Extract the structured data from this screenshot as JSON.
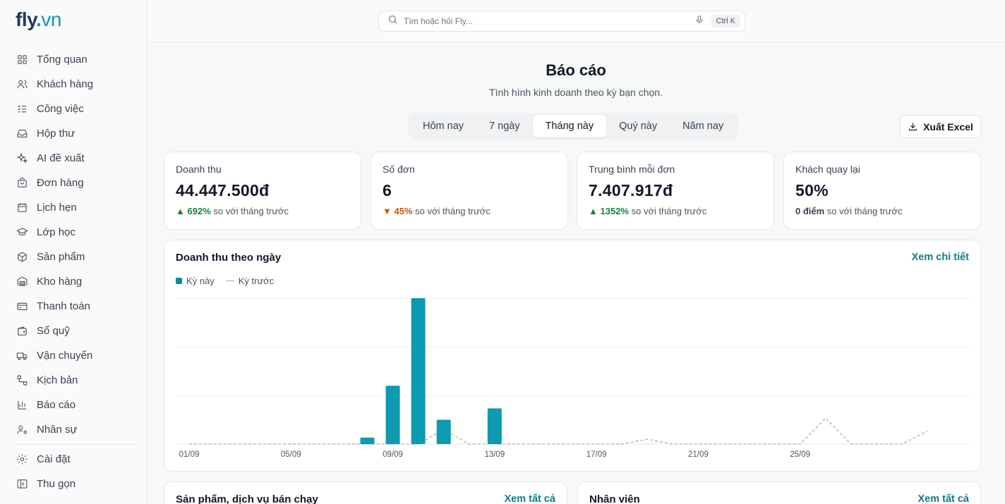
{
  "brand": {
    "name_main": "fly",
    "name_dot": ".",
    "name_tld": "vn"
  },
  "sidebar": {
    "items": [
      {
        "label": "Tổng quan",
        "icon": "grid-icon"
      },
      {
        "label": "Khách hàng",
        "icon": "users-icon"
      },
      {
        "label": "Công việc",
        "icon": "checklist-icon"
      },
      {
        "label": "Hộp thư",
        "icon": "inbox-icon"
      },
      {
        "label": "AI đề xuất",
        "icon": "sparkles-icon"
      },
      {
        "label": "Đơn hàng",
        "icon": "shopping-bag-icon"
      },
      {
        "label": "Lịch hẹn",
        "icon": "calendar-icon"
      },
      {
        "label": "Lớp học",
        "icon": "graduation-cap-icon"
      },
      {
        "label": "Sản phẩm",
        "icon": "box-icon"
      },
      {
        "label": "Kho hàng",
        "icon": "warehouse-icon"
      },
      {
        "label": "Thanh toán",
        "icon": "credit-card-icon"
      },
      {
        "label": "Sổ quỹ",
        "icon": "wallet-icon"
      },
      {
        "label": "Vận chuyển",
        "icon": "truck-icon"
      },
      {
        "label": "Kịch bản",
        "icon": "workflow-icon"
      },
      {
        "label": "Báo cáo",
        "icon": "bar-chart-icon"
      },
      {
        "label": "Nhân sự",
        "icon": "user-cog-icon"
      }
    ],
    "footer": [
      {
        "label": "Cài đặt",
        "icon": "gear-icon"
      },
      {
        "label": "Thu gọn",
        "icon": "collapse-icon"
      }
    ]
  },
  "search": {
    "placeholder": "Tìm hoặc hỏi Fly...",
    "shortcut": "Ctrl K"
  },
  "header": {
    "title": "Báo cáo",
    "subtitle": "Tình hình kinh doanh theo kỳ bạn chọn."
  },
  "tabs": [
    {
      "label": "Hôm nay",
      "active": false
    },
    {
      "label": "7 ngày",
      "active": false
    },
    {
      "label": "Tháng này",
      "active": true
    },
    {
      "label": "Quý này",
      "active": false
    },
    {
      "label": "Năm nay",
      "active": false
    }
  ],
  "export_label": "Xuất Excel",
  "kpis": [
    {
      "label": "Doanh thu",
      "value": "44.447.500đ",
      "arrow": "▲",
      "delta": "692%",
      "trend": "up",
      "suffix": " so với tháng trước"
    },
    {
      "label": "Số đơn",
      "value": "6",
      "arrow": "▼",
      "delta": "45%",
      "trend": "down",
      "suffix": " so với tháng trước"
    },
    {
      "label": "Trung bình mỗi đơn",
      "value": "7.407.917đ",
      "arrow": "▲",
      "delta": "1352%",
      "trend": "up",
      "suffix": " so với tháng trước"
    },
    {
      "label": "Khách quay lại",
      "value": "50%",
      "arrow": "",
      "delta": "0 điểm",
      "trend": "neutral",
      "suffix": " so với tháng trước"
    }
  ],
  "revenue_chart": {
    "title": "Doanh thu theo ngày",
    "link": "Xem chi tiết",
    "legend_current": "Kỳ này",
    "legend_previous": "Kỳ trước"
  },
  "chart_data": {
    "type": "bar",
    "x_tick_labels": [
      "01/09",
      "05/09",
      "09/09",
      "13/09",
      "17/09",
      "21/09",
      "25/09"
    ],
    "categories": [
      "01/09",
      "02/09",
      "03/09",
      "04/09",
      "05/09",
      "06/09",
      "07/09",
      "08/09",
      "09/09",
      "10/09",
      "11/09",
      "12/09",
      "13/09",
      "14/09",
      "15/09",
      "16/09",
      "17/09",
      "18/09",
      "19/09",
      "20/09",
      "21/09",
      "22/09",
      "23/09",
      "24/09",
      "25/09",
      "26/09",
      "27/09",
      "28/09",
      "29/09",
      "30/09"
    ],
    "series": [
      {
        "name": "Kỳ này",
        "style": "bar",
        "color": "#0e9ab0",
        "values": [
          0,
          0,
          0,
          0,
          0,
          0,
          0,
          0.4,
          3.6,
          9.0,
          1.5,
          0,
          2.2,
          0,
          0,
          0,
          0,
          0,
          0,
          0,
          0,
          0,
          0,
          0,
          0,
          0,
          0,
          0,
          0,
          0
        ]
      },
      {
        "name": "Kỳ trước",
        "style": "dashed-line",
        "color": "#b8bcc2",
        "values": [
          0,
          0,
          0,
          0,
          0,
          0,
          0,
          0,
          0,
          0,
          0.9,
          0,
          0,
          0,
          0,
          0,
          0,
          0,
          0.3,
          0,
          0,
          0,
          0,
          0,
          0,
          1.6,
          0,
          0,
          0,
          0.8
        ]
      }
    ],
    "ylim": [
      0,
      9.0
    ],
    "grid": true
  },
  "bottom_cards": [
    {
      "title": "Sản phẩm, dịch vụ bán chạy",
      "link": "Xem tất cả"
    },
    {
      "title": "Nhân viên",
      "link": "Xem tất cả"
    }
  ]
}
